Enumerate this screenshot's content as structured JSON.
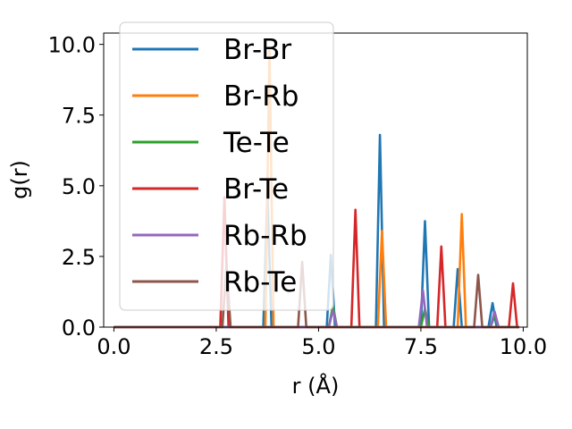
{
  "chart_data": {
    "type": "line",
    "xlabel": "r (Å)",
    "ylabel": "g(r)",
    "xlim": [
      -0.25,
      10.1
    ],
    "ylim": [
      0,
      10.4
    ],
    "xticks": [
      0.0,
      2.5,
      5.0,
      7.5,
      10.0
    ],
    "yticks": [
      0.0,
      2.5,
      5.0,
      7.5,
      10.0
    ],
    "xtick_labels": [
      "0.0",
      "2.5",
      "5.0",
      "7.5",
      "10.0"
    ],
    "ytick_labels": [
      "0.0",
      "2.5",
      "5.0",
      "7.5",
      "10.0"
    ],
    "grid": false,
    "legend_position": "top-left",
    "series": [
      {
        "name": "Br-Br",
        "color": "#1f77b4",
        "peaks": [
          [
            3.75,
            4.8
          ],
          [
            5.3,
            2.55
          ],
          [
            6.5,
            6.8
          ],
          [
            7.6,
            3.75
          ],
          [
            8.4,
            2.05
          ],
          [
            9.25,
            0.85
          ]
        ]
      },
      {
        "name": "Br-Rb",
        "color": "#ff7f0e",
        "peaks": [
          [
            3.8,
            9.8
          ],
          [
            6.55,
            3.4
          ],
          [
            8.5,
            4.0
          ]
        ]
      },
      {
        "name": "Te-Te",
        "color": "#2ca02c",
        "peaks": [
          [
            5.35,
            0.75
          ],
          [
            7.6,
            0.65
          ],
          [
            9.3,
            0.4
          ]
        ]
      },
      {
        "name": "Br-Te",
        "color": "#d62728",
        "peaks": [
          [
            2.7,
            4.6
          ],
          [
            5.9,
            4.15
          ],
          [
            8.0,
            2.85
          ],
          [
            9.75,
            1.55
          ]
        ]
      },
      {
        "name": "Rb-Rb",
        "color": "#9467bd",
        "peaks": [
          [
            5.35,
            0.6
          ],
          [
            7.55,
            1.3
          ],
          [
            9.3,
            0.55
          ]
        ]
      },
      {
        "name": "Rb-Te",
        "color": "#8c564b",
        "peaks": [
          [
            2.75,
            2.2
          ],
          [
            4.6,
            2.3
          ],
          [
            8.9,
            1.85
          ]
        ]
      }
    ]
  }
}
